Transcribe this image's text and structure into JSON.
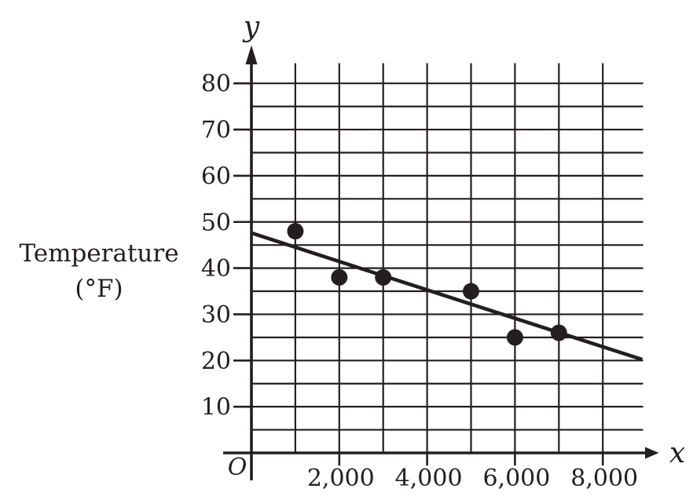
{
  "figure": {
    "background_color": "#ffffff",
    "ink_color": "#231f20"
  },
  "chart_data": {
    "type": "scatter",
    "title": "",
    "xlabel": "x",
    "ylabel": "y",
    "origin_label": "O",
    "y_axis_title_lines": [
      "Temperature",
      "(°F)"
    ],
    "grid": true,
    "legend": "none",
    "xlim": [
      0,
      8900
    ],
    "ylim": [
      0,
      84.5
    ],
    "x_gridline_values": [
      1000,
      2000,
      3000,
      4000,
      5000,
      6000,
      7000,
      8000
    ],
    "y_gridline_values": [
      5,
      10,
      15,
      20,
      25,
      30,
      35,
      40,
      45,
      50,
      55,
      60,
      65,
      70,
      75,
      80
    ],
    "x_ticks": [
      {
        "value": 2000,
        "label": "2,000"
      },
      {
        "value": 4000,
        "label": "4,000"
      },
      {
        "value": 6000,
        "label": "6,000"
      },
      {
        "value": 8000,
        "label": "8,000"
      }
    ],
    "y_ticks": [
      {
        "value": 10,
        "label": "10"
      },
      {
        "value": 20,
        "label": "20"
      },
      {
        "value": 30,
        "label": "30"
      },
      {
        "value": 40,
        "label": "40"
      },
      {
        "value": 50,
        "label": "50"
      },
      {
        "value": 60,
        "label": "60"
      },
      {
        "value": 70,
        "label": "70"
      },
      {
        "value": 80,
        "label": "80"
      }
    ],
    "points": [
      {
        "x": 1000,
        "y": 48
      },
      {
        "x": 2000,
        "y": 38
      },
      {
        "x": 3000,
        "y": 38
      },
      {
        "x": 5000,
        "y": 35
      },
      {
        "x": 6000,
        "y": 25
      },
      {
        "x": 7000,
        "y": 26
      }
    ],
    "trendline": {
      "x1": 0,
      "y1": 47.6,
      "x2": 8900,
      "y2": 20.2
    }
  }
}
